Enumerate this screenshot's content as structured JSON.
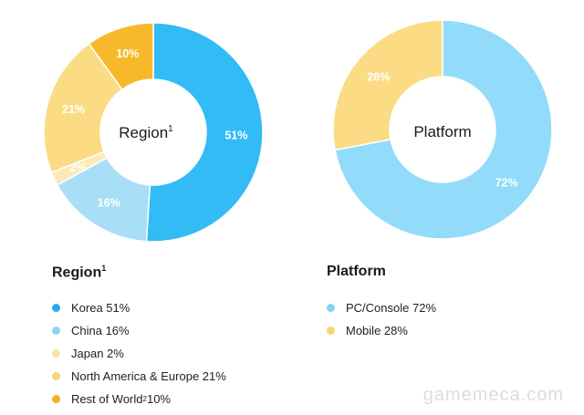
{
  "chart_data": [
    {
      "type": "pie",
      "title": "Region",
      "title_superscript": "1",
      "center_label": "Region",
      "slices": [
        {
          "name": "Korea",
          "value": 51,
          "label": "51%",
          "legend": "Korea 51%",
          "color": "#33bbf6",
          "dot_color": "#2aa9ea"
        },
        {
          "name": "China",
          "value": 16,
          "label": "16%",
          "legend": "China 16%",
          "color": "#a9def7",
          "dot_color": "#8fd4f6"
        },
        {
          "name": "Japan",
          "value": 2,
          "label": "2%",
          "legend": "Japan 2%",
          "color": "#fbeab7",
          "dot_color": "#fae3a2"
        },
        {
          "name": "North America & Europe",
          "value": 21,
          "label": "21%",
          "legend": "North America & Europe 21%",
          "color": "#fbdc85",
          "dot_color": "#f8d66f"
        },
        {
          "name": "Rest of World",
          "value": 10,
          "label": "10%",
          "legend": "Rest of World",
          "legend_sup": "2",
          "legend_suffix": " 10%",
          "color": "#f7b92b",
          "dot_color": "#f4b02a"
        }
      ]
    },
    {
      "type": "pie",
      "title": "Platform",
      "center_label": "Platform",
      "slices": [
        {
          "name": "PC/Console",
          "value": 72,
          "label": "72%",
          "legend": "PC/Console 72%",
          "color": "#92dbfa",
          "dot_color": "#84d3f6"
        },
        {
          "name": "Mobile",
          "value": 28,
          "label": "28%",
          "legend": "Mobile 28%",
          "color": "#fbdc85",
          "dot_color": "#f8d66f"
        }
      ]
    }
  ],
  "watermark": "gamemeca.com"
}
